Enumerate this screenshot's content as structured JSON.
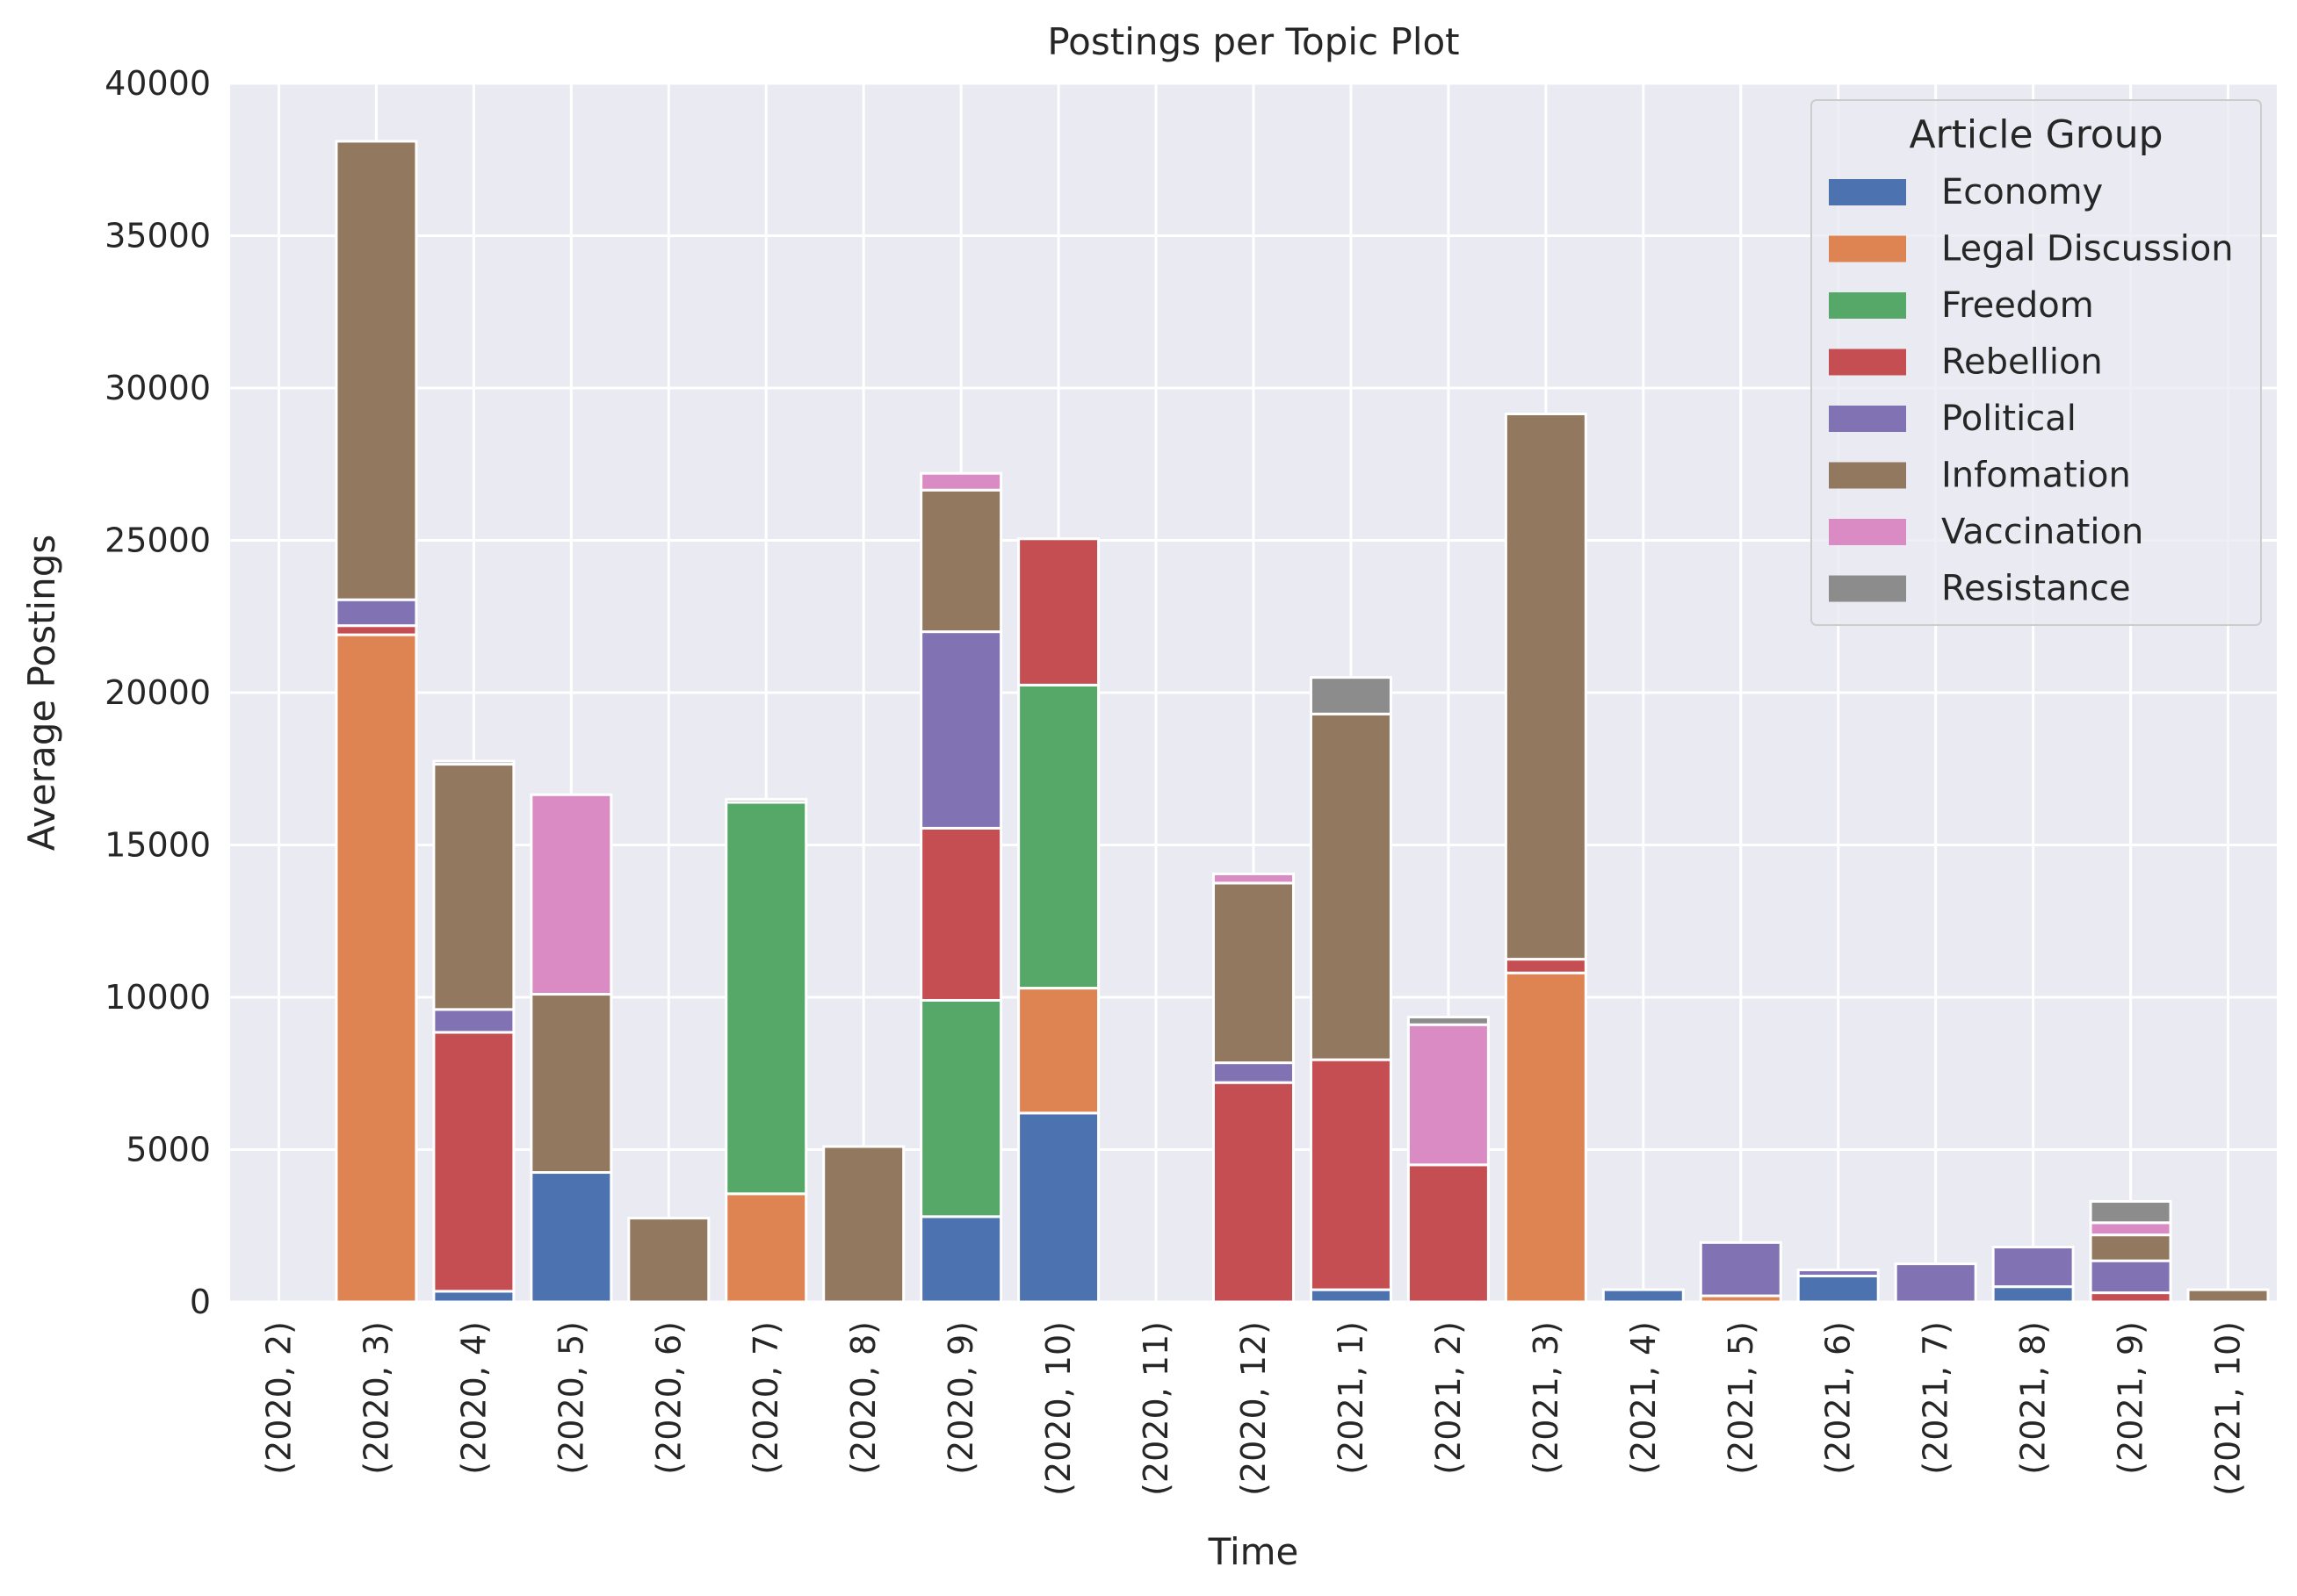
{
  "chart_data": {
    "type": "bar",
    "stacked": true,
    "title": "Postings per Topic Plot",
    "xlabel": "Time",
    "ylabel": "Average Postings",
    "ylim": [
      0,
      40000
    ],
    "yticks": [
      0,
      5000,
      10000,
      15000,
      20000,
      25000,
      30000,
      35000,
      40000
    ],
    "grid": true,
    "legend": {
      "title": "Article Group",
      "placement": "top-right"
    },
    "categories": [
      "(2020, 2)",
      "(2020, 3)",
      "(2020, 4)",
      "(2020, 5)",
      "(2020, 6)",
      "(2020, 7)",
      "(2020, 8)",
      "(2020, 9)",
      "(2020, 10)",
      "(2020, 11)",
      "(2020, 12)",
      "(2021, 1)",
      "(2021, 2)",
      "(2021, 3)",
      "(2021, 4)",
      "(2021, 5)",
      "(2021, 6)",
      "(2021, 7)",
      "(2021, 8)",
      "(2021, 9)",
      "(2021, 10)"
    ],
    "series": [
      {
        "name": "Economy",
        "color": "#4c72b0",
        "values": [
          0,
          0,
          350,
          4250,
          0,
          0,
          0,
          2800,
          6200,
          0,
          0,
          400,
          0,
          0,
          400,
          0,
          850,
          0,
          500,
          0,
          0
        ]
      },
      {
        "name": "Legal Discussion",
        "color": "#dd8452",
        "values": [
          0,
          21900,
          0,
          0,
          0,
          3550,
          0,
          0,
          4100,
          0,
          0,
          0,
          0,
          10800,
          0,
          200,
          0,
          0,
          0,
          0,
          0
        ]
      },
      {
        "name": "Freedom",
        "color": "#55a868",
        "values": [
          0,
          0,
          0,
          0,
          0,
          12850,
          0,
          7100,
          9950,
          0,
          0,
          0,
          0,
          0,
          0,
          0,
          0,
          0,
          0,
          0,
          0
        ]
      },
      {
        "name": "Rebellion",
        "color": "#c44e52",
        "values": [
          0,
          300,
          8500,
          0,
          0,
          0,
          0,
          5650,
          4800,
          0,
          7200,
          7550,
          4500,
          450,
          0,
          0,
          0,
          0,
          0,
          300,
          0
        ]
      },
      {
        "name": "Political",
        "color": "#8172b3",
        "values": [
          0,
          850,
          750,
          0,
          0,
          0,
          0,
          6450,
          0,
          0,
          650,
          0,
          0,
          0,
          0,
          1750,
          200,
          1250,
          1300,
          1050,
          0
        ]
      },
      {
        "name": "Infomation",
        "color": "#937860",
        "values": [
          0,
          15050,
          8050,
          5850,
          2750,
          0,
          5100,
          4650,
          0,
          0,
          5900,
          11350,
          0,
          17900,
          0,
          0,
          0,
          0,
          0,
          850,
          400
        ]
      },
      {
        "name": "Vaccination",
        "color": "#da8bc3",
        "values": [
          0,
          0,
          0,
          6550,
          0,
          0,
          0,
          550,
          0,
          0,
          300,
          0,
          4600,
          0,
          0,
          0,
          0,
          0,
          0,
          400,
          0
        ]
      },
      {
        "name": "Resistance",
        "color": "#8c8c8c",
        "values": [
          0,
          0,
          100,
          0,
          0,
          100,
          0,
          0,
          0,
          0,
          0,
          1200,
          250,
          0,
          0,
          0,
          0,
          0,
          0,
          700,
          0
        ]
      }
    ]
  }
}
